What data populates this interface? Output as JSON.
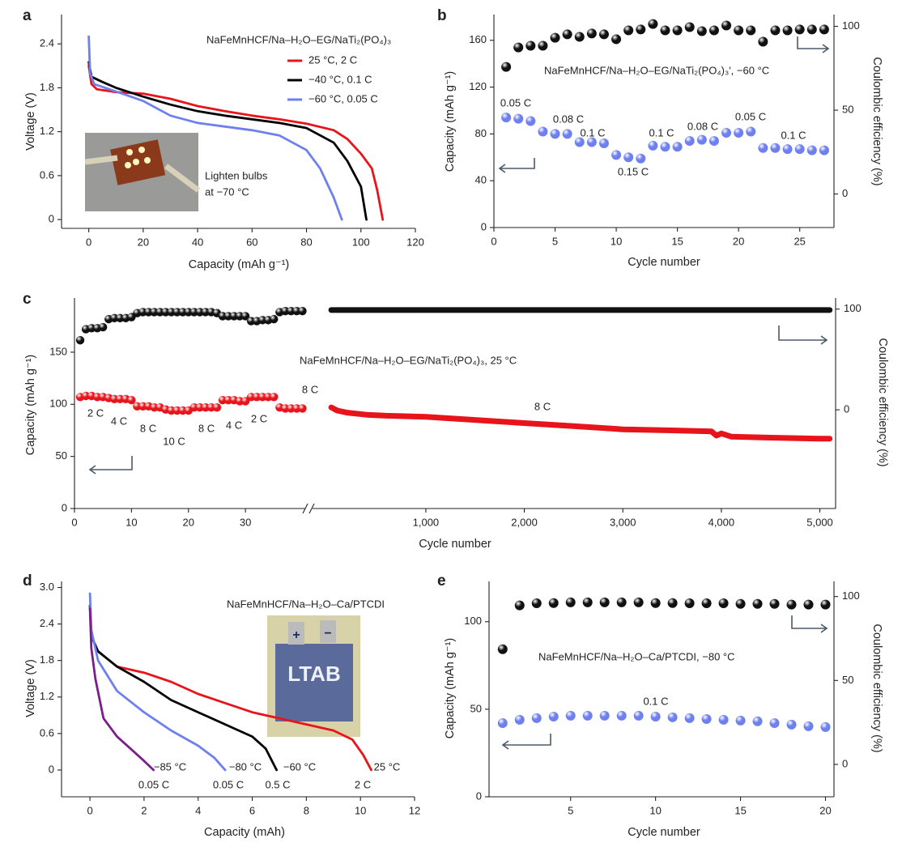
{
  "chart_data": [
    {
      "type": "line",
      "panel_label": "a",
      "xlabel": "Capacity (mAh g⁻¹)",
      "ylabel": "Voltage (V)",
      "xlim": [
        -10,
        120
      ],
      "xticks": [
        0,
        20,
        40,
        60,
        80,
        100,
        120
      ],
      "ylim": [
        -0.12,
        2.8
      ],
      "yticks": [
        0,
        0.6,
        1.2,
        1.8,
        2.4
      ],
      "legend": "upper right",
      "legend_title": "NaFeMnHCF/Na–H₂O–EG/NaTi₂(PO₄)₃",
      "annotations": [
        "Lighten bulbs",
        "at −70 °C"
      ],
      "series": [
        {
          "name": "25 °C, 2 C",
          "color": "#e8141b",
          "x": [
            0,
            1,
            3,
            10,
            20,
            30,
            40,
            50,
            60,
            70,
            80,
            90,
            95,
            100,
            104,
            106,
            108
          ],
          "values": [
            2.1,
            1.85,
            1.78,
            1.74,
            1.72,
            1.65,
            1.55,
            1.48,
            1.42,
            1.37,
            1.31,
            1.22,
            1.1,
            0.9,
            0.7,
            0.4,
            0
          ]
        },
        {
          "name": "−40 °C, 0.1 C",
          "color": "#000000",
          "x": [
            0,
            1,
            5,
            10,
            20,
            30,
            40,
            50,
            60,
            70,
            80,
            90,
            95,
            100,
            102
          ],
          "values": [
            2.15,
            1.95,
            1.88,
            1.8,
            1.68,
            1.57,
            1.48,
            1.42,
            1.37,
            1.32,
            1.25,
            1.05,
            0.8,
            0.45,
            0
          ]
        },
        {
          "name": "−60 °C, 0.05 C",
          "color": "#6e80ee",
          "x": [
            0,
            0.5,
            2,
            10,
            20,
            30,
            40,
            50,
            60,
            70,
            80,
            85,
            90,
            93
          ],
          "values": [
            2.5,
            2.0,
            1.85,
            1.75,
            1.62,
            1.42,
            1.32,
            1.27,
            1.22,
            1.15,
            0.95,
            0.7,
            0.3,
            0
          ]
        }
      ]
    },
    {
      "type": "scatter",
      "panel_label": "b",
      "title": "NaFeMnHCF/Na–H₂O–EG/NaTi₂(PO₄)₃′, −60 °C",
      "xlabel": "Cycle number",
      "ylabel": "Capacity (mAh g⁻¹)",
      "y2label": "Coulombic efficiency (%)",
      "xlim": [
        0,
        27.8
      ],
      "xticks": [
        0,
        5,
        10,
        15,
        20,
        25
      ],
      "ylim": [
        0,
        182
      ],
      "yticks": [
        0,
        40,
        80,
        120,
        160
      ],
      "y2lim": [
        -20,
        107
      ],
      "y2ticks": [
        0,
        50,
        100
      ],
      "annotations": [
        "0.05 C",
        "0.08 C",
        "0.1 C",
        "0.15 C",
        "0.1 C",
        "0.08 C",
        "0.05 C",
        "0.1 C"
      ],
      "series": [
        {
          "color": "#6e80ee",
          "x": [
            1,
            2,
            3,
            4,
            5,
            6,
            7,
            8,
            9,
            10,
            11,
            12,
            13,
            14,
            15,
            16,
            17,
            18,
            19,
            20,
            21,
            22,
            23,
            24,
            25,
            26,
            27
          ],
          "values": [
            94,
            93,
            91,
            82,
            80,
            80,
            73,
            73,
            72,
            62,
            60,
            59,
            70,
            69,
            69,
            74,
            75,
            74,
            81,
            81,
            82,
            68,
            68,
            67,
            67,
            66,
            66
          ]
        },
        {
          "color": "#111111",
          "axis": "y2",
          "x": [
            1,
            2,
            3,
            4,
            5,
            6,
            7,
            8,
            9,
            10,
            11,
            12,
            13,
            14,
            15,
            16,
            17,
            18,
            19,
            20,
            21,
            22,
            23,
            24,
            25,
            26,
            27
          ],
          "values": [
            75.8,
            87.4,
            88.4,
            88.4,
            93.2,
            95.2,
            93.7,
            95.7,
            95.2,
            92.3,
            97.6,
            98.1,
            101.4,
            97.6,
            97.6,
            99.5,
            97.1,
            97.6,
            100.5,
            97.6,
            97.6,
            90.8,
            97.6,
            97.6,
            98.1,
            98.1,
            98.1
          ]
        }
      ]
    },
    {
      "type": "scatter",
      "panel_label": "c",
      "title": "NaFeMnHCF/Na–H₂O–EG/NaTi₂(PO₄)₃, 25 °C",
      "xlabel": "Cycle number",
      "ylabel": "Capacity (mAh g⁻¹)",
      "y2label": "Coulombic efficiency (%)",
      "xlim": [
        0,
        40.5
      ],
      "xticks": [
        0,
        10,
        20,
        30
      ],
      "x2lim": [
        -150,
        5160
      ],
      "x2ticks": [
        {
          "value": 1000,
          "label": "1,000"
        },
        {
          "value": 2000,
          "label": "2,000"
        },
        {
          "value": 3000,
          "label": "3,000"
        },
        {
          "value": 4000,
          "label": "4,000"
        },
        {
          "value": 5000,
          "label": "5,000"
        }
      ],
      "ylim": [
        0,
        202
      ],
      "yticks": [
        0,
        50,
        100,
        150
      ],
      "y2lim": [
        -98,
        111
      ],
      "y2ticks": [
        0,
        100
      ],
      "annotations": [
        "2 C",
        "4 C",
        "8 C",
        "10 C",
        "8 C",
        "4 C",
        "2 C",
        "8 C",
        "8 C"
      ],
      "series": [
        {
          "color": "#e8141b",
          "x": [
            1,
            2,
            3,
            4,
            5,
            6,
            7,
            8,
            9,
            10,
            11,
            12,
            13,
            14,
            15,
            16,
            17,
            18,
            19,
            20,
            21,
            22,
            23,
            24,
            25,
            26,
            27,
            28,
            29,
            30,
            31,
            32,
            33,
            34,
            35,
            36,
            37,
            38,
            39,
            40
          ],
          "values": [
            107,
            108,
            108,
            107,
            107,
            106,
            105,
            105,
            105,
            104,
            98,
            98,
            98,
            97,
            97,
            95,
            94,
            94,
            94,
            94,
            97,
            97,
            97,
            97,
            97,
            104,
            104,
            104,
            103,
            103,
            107,
            107,
            107,
            107,
            107,
            97,
            96,
            96,
            96,
            96
          ]
        },
        {
          "color": "#111111",
          "axis": "y2",
          "x": [
            1,
            2,
            3,
            4,
            5,
            6,
            7,
            8,
            9,
            10,
            11,
            12,
            13,
            14,
            15,
            16,
            17,
            18,
            19,
            20,
            21,
            22,
            23,
            24,
            25,
            26,
            27,
            28,
            29,
            30,
            31,
            32,
            33,
            34,
            35,
            36,
            37,
            38,
            39,
            40
          ],
          "values": [
            69,
            80,
            81,
            81,
            82,
            90,
            91,
            91,
            91,
            92,
            96,
            97,
            97,
            97,
            97,
            97,
            97,
            97,
            97,
            97,
            97,
            97,
            97,
            97,
            96,
            93,
            93,
            93,
            93,
            93,
            88,
            88,
            89,
            89,
            90,
            97,
            98,
            98,
            98,
            98
          ]
        },
        {
          "color": "#e8141b",
          "xaxis": "x2",
          "marker": "line",
          "x": [
            40,
            100,
            200,
            400,
            600,
            1000,
            1500,
            2000,
            2500,
            3000,
            3500,
            3900,
            3950,
            4000,
            4100,
            4500,
            5000,
            5100
          ],
          "values": [
            97,
            94,
            92,
            90,
            89,
            88,
            85,
            82,
            79,
            76,
            75,
            74,
            70,
            72,
            69,
            68,
            67,
            67
          ]
        },
        {
          "color": "#111111",
          "axis": "y2",
          "xaxis": "x2",
          "marker": "line",
          "x": [
            40,
            1000,
            2000,
            3000,
            4000,
            5100
          ],
          "values": [
            99,
            99,
            99,
            99,
            99,
            99
          ]
        }
      ]
    },
    {
      "type": "line",
      "panel_label": "d",
      "title": "NaFeMnHCF/Na–H₂O–Ca/PTCDI",
      "xlabel": "Capacity (mAh)",
      "ylabel": "Voltage (V)",
      "xlim": [
        -1.05,
        12
      ],
      "xticks": [
        0,
        2,
        4,
        6,
        8,
        10,
        12
      ],
      "ylim": [
        -0.44,
        3.1
      ],
      "yticks": [
        0,
        0.6,
        1.2,
        1.8,
        2.4,
        {
          "value": 3,
          "label": "3.0"
        }
      ],
      "annotations": [
        "LTAB",
        "+",
        "−"
      ],
      "series": [
        {
          "name": "25 °C",
          "rate": "2 C",
          "color": "#e8141b",
          "x": [
            0,
            0.05,
            0.3,
            1,
            2,
            3,
            4,
            5,
            6,
            7,
            8,
            9,
            9.7,
            10.1,
            10.4
          ],
          "values": [
            2.7,
            2.2,
            1.95,
            1.7,
            1.6,
            1.45,
            1.25,
            1.1,
            0.95,
            0.85,
            0.75,
            0.65,
            0.5,
            0.25,
            0
          ]
        },
        {
          "name": "−60 °C",
          "rate": "0.5 C",
          "color": "#000000",
          "x": [
            0,
            0.05,
            0.3,
            1,
            2,
            3,
            4,
            5,
            6,
            6.5,
            6.9
          ],
          "values": [
            2.7,
            2.2,
            1.95,
            1.7,
            1.45,
            1.15,
            0.95,
            0.75,
            0.55,
            0.35,
            0
          ]
        },
        {
          "name": "−80 °C",
          "rate": "0.05 C",
          "color": "#6e80ee",
          "x": [
            0,
            0.05,
            0.3,
            1,
            2,
            3,
            4,
            4.6,
            5
          ],
          "values": [
            2.9,
            2.3,
            1.8,
            1.3,
            0.95,
            0.65,
            0.4,
            0.2,
            0
          ]
        },
        {
          "name": "−85 °C",
          "rate": "0.05 C",
          "color": "#7b1e8a",
          "x": [
            0,
            0.05,
            0.2,
            0.5,
            1,
            1.5,
            2,
            2.35
          ],
          "values": [
            2.65,
            2.0,
            1.5,
            0.85,
            0.55,
            0.35,
            0.15,
            0
          ]
        }
      ]
    },
    {
      "type": "scatter",
      "panel_label": "e",
      "title": "NaFeMnHCF/Na–H₂O–Ca/PTCDI, −80 °C",
      "xlabel": "Cycle number",
      "ylabel": "Capacity (mAh g⁻¹)",
      "y2label": "Coulombic efficiency (%)",
      "xlim": [
        0.2,
        20.5
      ],
      "xticks": [
        5,
        10,
        15,
        20
      ],
      "ylim": [
        0,
        123
      ],
      "yticks": [
        0,
        50,
        100
      ],
      "y2lim": [
        -19.3,
        109
      ],
      "y2ticks": [
        0,
        50,
        100
      ],
      "annotations": [
        "0.1 C"
      ],
      "series": [
        {
          "color": "#6e80ee",
          "x": [
            1,
            2,
            3,
            4,
            5,
            6,
            7,
            8,
            9,
            10,
            11,
            12,
            13,
            14,
            15,
            16,
            17,
            18,
            19,
            20
          ],
          "values": [
            42.1,
            44,
            44.9,
            45.8,
            46.3,
            46.3,
            46.3,
            46.3,
            46.3,
            45.8,
            45.4,
            44.9,
            44.4,
            44,
            43.5,
            43.1,
            42.1,
            41.2,
            40.3,
            39.8
          ]
        },
        {
          "color": "#111111",
          "axis": "y2",
          "x": [
            1,
            2,
            3,
            4,
            5,
            6,
            7,
            8,
            9,
            10,
            11,
            12,
            13,
            14,
            15,
            16,
            17,
            18,
            19,
            20
          ],
          "values": [
            68.6,
            94.7,
            96,
            96.1,
            96.5,
            96.5,
            96.5,
            96.5,
            96.5,
            96.1,
            96.1,
            96,
            96,
            96,
            95.6,
            95.6,
            95.6,
            95.2,
            95.2,
            95.2
          ]
        }
      ]
    }
  ]
}
